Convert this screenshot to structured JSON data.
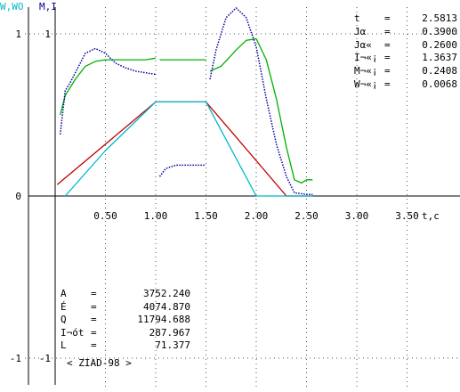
{
  "header": {
    "left_axis_label_1": "W,WO",
    "left_axis_label_2": "M,I"
  },
  "readout": [
    {
      "key": "t",
      "eq": "=",
      "value": "2.5813"
    },
    {
      "key": "Jα",
      "eq": "=",
      "value": "0.3900"
    },
    {
      "key": "Jα«",
      "eq": "=",
      "value": "0.2600"
    },
    {
      "key": "I¬«¡",
      "eq": "=",
      "value": "1.3637"
    },
    {
      "key": "M¬«¡",
      "eq": "=",
      "value": "0.2408"
    },
    {
      "key": "W¬«¡",
      "eq": "=",
      "value": "0.0068"
    }
  ],
  "results": [
    {
      "key": "A",
      "eq": "=",
      "value": "3752.240"
    },
    {
      "key": "É",
      "eq": "=",
      "value": "4074.870"
    },
    {
      "key": "Q",
      "eq": "=",
      "value": "11794.688"
    },
    {
      "key": "I¬ót",
      "eq": "=",
      "value": "287.967"
    },
    {
      "key": "L",
      "eq": "=",
      "value": "71.377"
    }
  ],
  "footer": "< ZIAD-98 >",
  "chart_data": {
    "type": "line",
    "xlabel": "t,c",
    "x_ticks": [
      "0.50",
      "1.00",
      "1.50",
      "2.00",
      "2.50",
      "3.00",
      "3.50"
    ],
    "x_tick_values": [
      0.5,
      1.0,
      1.5,
      2.0,
      2.5,
      3.0,
      3.5
    ],
    "y_ticks_left": [
      {
        "label": "1",
        "value": 1
      },
      {
        "label": "0",
        "value": 0
      },
      {
        "label": "-1",
        "value": -1
      }
    ],
    "y_ticks_inner": [
      {
        "label": "1",
        "value": 1
      },
      {
        "label": "-1",
        "value": -1
      }
    ],
    "xlim": [
      0,
      3.9
    ],
    "ylim": [
      -1.17,
      1.2
    ],
    "grid": true,
    "colors": {
      "green": "#00b000",
      "blue": "#0000a0",
      "red": "#c00000",
      "cyan": "#00b8c8"
    },
    "series": [
      {
        "color": "green",
        "style": "solid",
        "segments": [
          [
            [
              0.05,
              0.5
            ],
            [
              0.1,
              0.62
            ],
            [
              0.2,
              0.72
            ],
            [
              0.3,
              0.8
            ],
            [
              0.4,
              0.83
            ],
            [
              0.5,
              0.84
            ],
            [
              0.7,
              0.84
            ],
            [
              0.9,
              0.84
            ],
            [
              1.0,
              0.85
            ]
          ],
          [
            [
              1.04,
              0.84
            ],
            [
              1.2,
              0.84
            ],
            [
              1.5,
              0.84
            ]
          ],
          [
            [
              1.54,
              0.77
            ],
            [
              1.65,
              0.8
            ],
            [
              1.8,
              0.9
            ],
            [
              1.9,
              0.96
            ],
            [
              2.0,
              0.97
            ],
            [
              2.1,
              0.84
            ],
            [
              2.2,
              0.6
            ],
            [
              2.3,
              0.3
            ],
            [
              2.38,
              0.1
            ],
            [
              2.45,
              0.08
            ],
            [
              2.5,
              0.1
            ],
            [
              2.56,
              0.1
            ]
          ]
        ]
      },
      {
        "color": "blue",
        "style": "dotted",
        "segments": [
          [
            [
              0.05,
              0.38
            ],
            [
              0.1,
              0.65
            ],
            [
              0.15,
              0.7
            ],
            [
              0.2,
              0.76
            ],
            [
              0.3,
              0.88
            ],
            [
              0.4,
              0.91
            ],
            [
              0.5,
              0.88
            ],
            [
              0.6,
              0.82
            ],
            [
              0.7,
              0.79
            ],
            [
              0.8,
              0.77
            ],
            [
              0.9,
              0.76
            ],
            [
              1.0,
              0.75
            ]
          ],
          [
            [
              1.04,
              0.12
            ],
            [
              1.1,
              0.17
            ],
            [
              1.2,
              0.19
            ],
            [
              1.35,
              0.19
            ],
            [
              1.5,
              0.19
            ]
          ],
          [
            [
              1.54,
              0.72
            ],
            [
              1.6,
              0.9
            ],
            [
              1.7,
              1.1
            ],
            [
              1.8,
              1.16
            ],
            [
              1.9,
              1.1
            ],
            [
              2.0,
              0.92
            ],
            [
              2.1,
              0.6
            ],
            [
              2.2,
              0.32
            ],
            [
              2.3,
              0.12
            ],
            [
              2.38,
              0.02
            ],
            [
              2.5,
              0.01
            ],
            [
              2.56,
              0.01
            ]
          ]
        ]
      },
      {
        "color": "red",
        "style": "solid",
        "segments": [
          [
            [
              0.02,
              0.07
            ],
            [
              1.0,
              0.58
            ],
            [
              1.5,
              0.58
            ],
            [
              2.3,
              0.0
            ],
            [
              2.56,
              0.0
            ]
          ]
        ]
      },
      {
        "color": "cyan",
        "style": "solid",
        "segments": [
          [
            [
              0.1,
              0.0
            ],
            [
              0.5,
              0.28
            ],
            [
              1.0,
              0.58
            ],
            [
              1.5,
              0.58
            ],
            [
              2.0,
              0.0
            ],
            [
              2.56,
              0.0
            ]
          ]
        ]
      }
    ]
  }
}
